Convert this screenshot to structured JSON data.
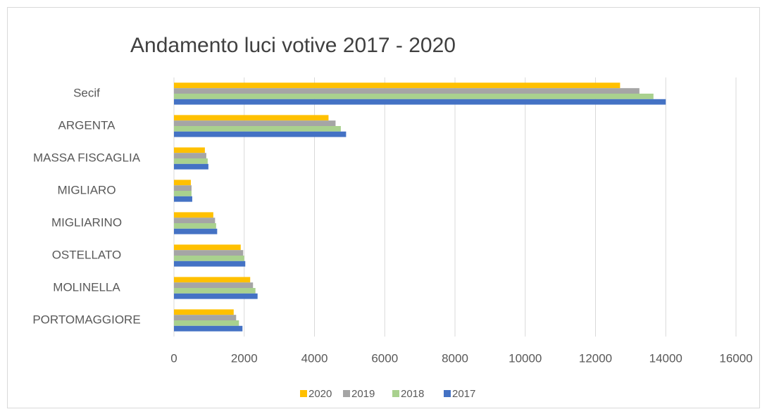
{
  "chart_data": {
    "type": "bar",
    "orientation": "horizontal",
    "title": "Andamento luci votive 2017 - 2020",
    "categories": [
      "Secif",
      "ARGENTA",
      "MASSA FISCAGLIA",
      "MIGLIARO",
      "MIGLIARINO",
      "OSTELLATO",
      "MOLINELLA",
      "PORTOMAGGIORE"
    ],
    "series": [
      {
        "name": "2020",
        "color": "#ffc000",
        "values": [
          12700,
          4400,
          880,
          480,
          1120,
          1900,
          2170,
          1700
        ]
      },
      {
        "name": "2019",
        "color": "#a5a5a5",
        "values": [
          13250,
          4600,
          920,
          500,
          1170,
          1970,
          2250,
          1770
        ]
      },
      {
        "name": "2018",
        "color": "#a9d18e",
        "values": [
          13650,
          4750,
          960,
          500,
          1200,
          2000,
          2320,
          1850
        ]
      },
      {
        "name": "2017",
        "color": "#4472c4",
        "values": [
          14000,
          4900,
          980,
          520,
          1230,
          2030,
          2380,
          1950
        ]
      }
    ],
    "xlim": [
      0,
      16000
    ],
    "xticks": [
      0,
      2000,
      4000,
      6000,
      8000,
      10000,
      12000,
      14000,
      16000
    ],
    "grid": true,
    "legend": "bottom"
  }
}
